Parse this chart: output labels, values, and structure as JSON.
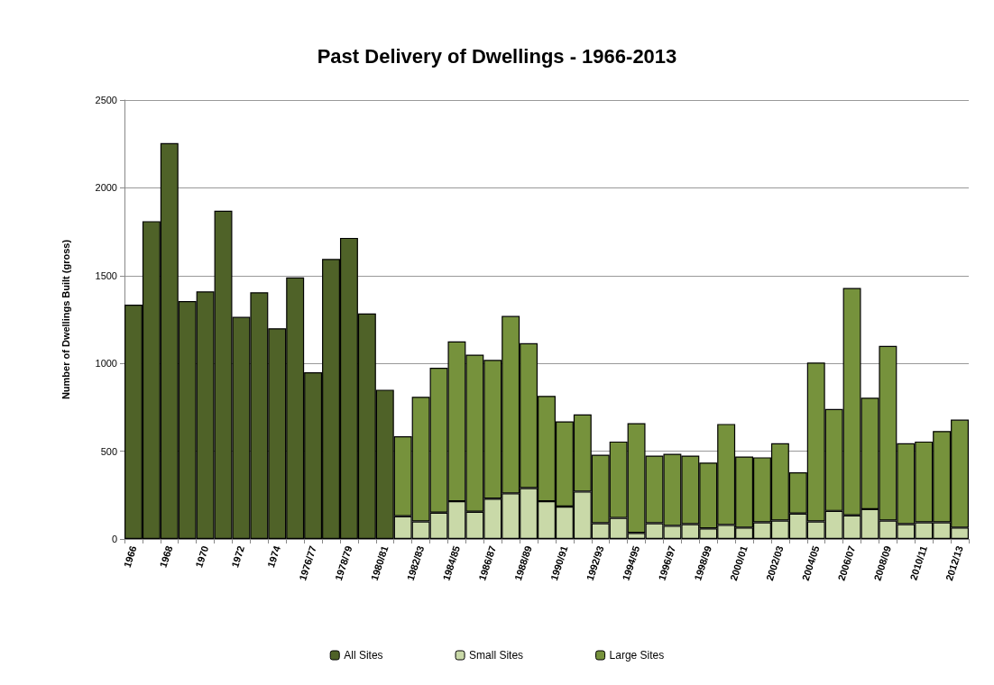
{
  "chart_data": {
    "type": "bar",
    "title": "Past Delivery of Dwellings - 1966-2013",
    "ylabel": "Number of Dwellings Built (gross)",
    "categories": [
      "1966",
      null,
      "1968",
      null,
      "1970",
      null,
      "1972",
      null,
      "1974",
      null,
      "1976/77",
      null,
      "1978/79",
      null,
      "1980/81",
      null,
      "1982/83",
      null,
      "1984/85",
      null,
      "1986/87",
      null,
      "1988/89",
      null,
      "1990/91",
      null,
      "1992/93",
      null,
      "1994/95",
      null,
      "1996/97",
      null,
      "1998/99",
      null,
      "2000/01",
      null,
      "2002/03",
      null,
      "2004/05",
      null,
      "2006/07",
      null,
      "2008/09",
      null,
      "2010/11",
      null,
      "2012/13"
    ],
    "stacked": true,
    "series": [
      {
        "name": "All Sites",
        "color": "#4f6228",
        "values": [
          1335,
          1810,
          2255,
          1355,
          1410,
          1870,
          1265,
          1405,
          1200,
          1490,
          950,
          1595,
          1715,
          1285,
          850,
          null,
          null,
          null,
          null,
          null,
          null,
          null,
          null,
          null,
          null,
          null,
          null,
          null,
          null,
          null,
          null,
          null,
          null,
          null,
          null,
          null,
          null,
          null,
          null,
          null,
          null,
          null,
          null,
          null,
          null,
          null,
          null
        ]
      },
      {
        "name": "Small Sites",
        "color": "#c9d9a8",
        "values": [
          null,
          null,
          null,
          null,
          null,
          null,
          null,
          null,
          null,
          null,
          null,
          null,
          null,
          null,
          null,
          130,
          100,
          150,
          215,
          155,
          230,
          260,
          290,
          215,
          185,
          270,
          90,
          120,
          35,
          90,
          75,
          85,
          60,
          80,
          65,
          95,
          105,
          145,
          100,
          160,
          135,
          170,
          105,
          85,
          95,
          95,
          65
        ]
      },
      {
        "name": "Large Sites",
        "color": "#76923c",
        "values": [
          null,
          null,
          null,
          null,
          null,
          null,
          null,
          null,
          null,
          null,
          null,
          null,
          null,
          null,
          null,
          455,
          710,
          825,
          910,
          895,
          790,
          1010,
          825,
          600,
          485,
          440,
          390,
          435,
          625,
          385,
          410,
          390,
          375,
          575,
          405,
          370,
          440,
          235,
          905,
          580,
          1295,
          635,
          995,
          460,
          460,
          520,
          615
        ]
      }
    ],
    "ylim": [
      0,
      2500
    ],
    "yticks": [
      0,
      500,
      1000,
      1500,
      2000,
      2500
    ],
    "grid": "y",
    "legend": "bottom"
  }
}
